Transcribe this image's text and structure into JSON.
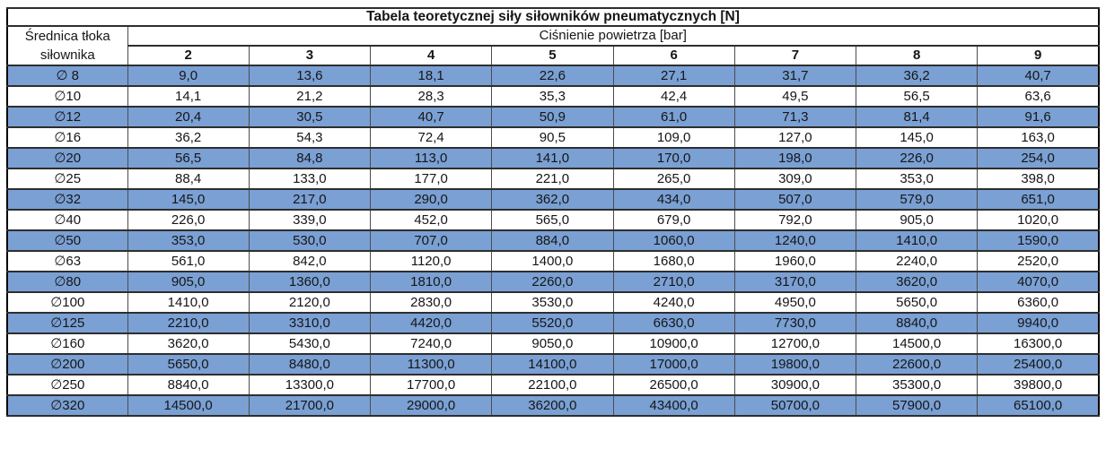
{
  "chart_data": {
    "type": "table",
    "title": "Tabela teoretycznej siły siłowników pneumatycznych [N]",
    "row_header_label": [
      "Średnica tłoka",
      "siłownika"
    ],
    "column_group_label": "Ciśnienie powietrza [bar]",
    "columns": [
      "2",
      "3",
      "4",
      "5",
      "6",
      "7",
      "8",
      "9"
    ],
    "rows": [
      {
        "diameter": "∅ 8",
        "values": [
          "9,0",
          "13,6",
          "18,1",
          "22,6",
          "27,1",
          "31,7",
          "36,2",
          "40,7"
        ]
      },
      {
        "diameter": "∅10",
        "values": [
          "14,1",
          "21,2",
          "28,3",
          "35,3",
          "42,4",
          "49,5",
          "56,5",
          "63,6"
        ]
      },
      {
        "diameter": "∅12",
        "values": [
          "20,4",
          "30,5",
          "40,7",
          "50,9",
          "61,0",
          "71,3",
          "81,4",
          "91,6"
        ]
      },
      {
        "diameter": "∅16",
        "values": [
          "36,2",
          "54,3",
          "72,4",
          "90,5",
          "109,0",
          "127,0",
          "145,0",
          "163,0"
        ]
      },
      {
        "diameter": "∅20",
        "values": [
          "56,5",
          "84,8",
          "113,0",
          "141,0",
          "170,0",
          "198,0",
          "226,0",
          "254,0"
        ]
      },
      {
        "diameter": "∅25",
        "values": [
          "88,4",
          "133,0",
          "177,0",
          "221,0",
          "265,0",
          "309,0",
          "353,0",
          "398,0"
        ]
      },
      {
        "diameter": "∅32",
        "values": [
          "145,0",
          "217,0",
          "290,0",
          "362,0",
          "434,0",
          "507,0",
          "579,0",
          "651,0"
        ]
      },
      {
        "diameter": "∅40",
        "values": [
          "226,0",
          "339,0",
          "452,0",
          "565,0",
          "679,0",
          "792,0",
          "905,0",
          "1020,0"
        ]
      },
      {
        "diameter": "∅50",
        "values": [
          "353,0",
          "530,0",
          "707,0",
          "884,0",
          "1060,0",
          "1240,0",
          "1410,0",
          "1590,0"
        ]
      },
      {
        "diameter": "∅63",
        "values": [
          "561,0",
          "842,0",
          "1120,0",
          "1400,0",
          "1680,0",
          "1960,0",
          "2240,0",
          "2520,0"
        ]
      },
      {
        "diameter": "∅80",
        "values": [
          "905,0",
          "1360,0",
          "1810,0",
          "2260,0",
          "2710,0",
          "3170,0",
          "3620,0",
          "4070,0"
        ]
      },
      {
        "diameter": "∅100",
        "values": [
          "1410,0",
          "2120,0",
          "2830,0",
          "3530,0",
          "4240,0",
          "4950,0",
          "5650,0",
          "6360,0"
        ]
      },
      {
        "diameter": "∅125",
        "values": [
          "2210,0",
          "3310,0",
          "4420,0",
          "5520,0",
          "6630,0",
          "7730,0",
          "8840,0",
          "9940,0"
        ]
      },
      {
        "diameter": "∅160",
        "values": [
          "3620,0",
          "5430,0",
          "7240,0",
          "9050,0",
          "10900,0",
          "12700,0",
          "14500,0",
          "16300,0"
        ]
      },
      {
        "diameter": "∅200",
        "values": [
          "5650,0",
          "8480,0",
          "11300,0",
          "14100,0",
          "17000,0",
          "19800,0",
          "22600,0",
          "25400,0"
        ]
      },
      {
        "diameter": "∅250",
        "values": [
          "8840,0",
          "13300,0",
          "17700,0",
          "22100,0",
          "26500,0",
          "30900,0",
          "35300,0",
          "39800,0"
        ]
      },
      {
        "diameter": "∅320",
        "values": [
          "14500,0",
          "21700,0",
          "29000,0",
          "36200,0",
          "43400,0",
          "50700,0",
          "57900,0",
          "65100,0"
        ]
      }
    ],
    "layout": {
      "highlighted_row_pattern": "every other data row starting with the first",
      "alignment": "center"
    }
  },
  "colors": {
    "row_highlight": "#7aa0d4",
    "row_plain": "#ffffff",
    "grid_line": "#4d4d4d",
    "outer_border": "#000000",
    "text": "#161616"
  }
}
